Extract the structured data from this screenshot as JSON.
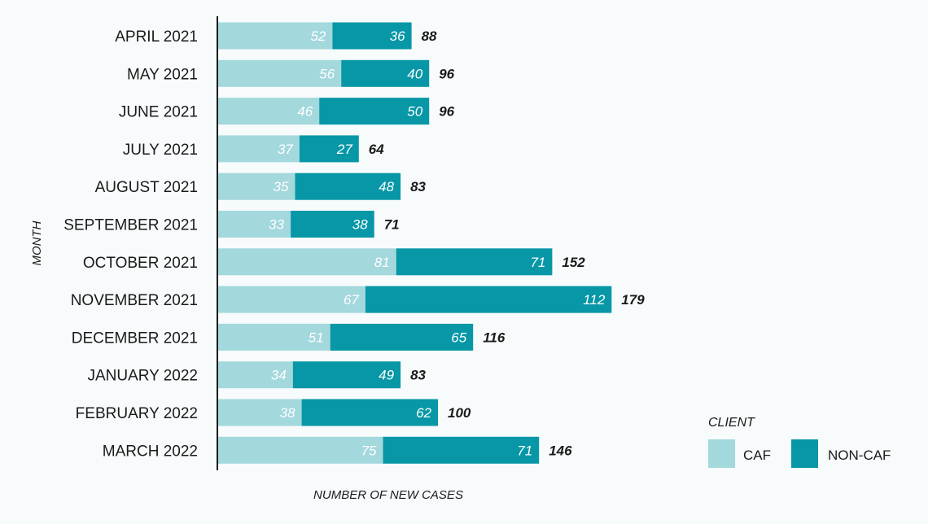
{
  "chart_data": {
    "type": "bar",
    "orientation": "horizontal",
    "stacked": true,
    "title": "",
    "xlabel": "NUMBER OF NEW CASES",
    "ylabel": "MONTH",
    "xlim": [
      0,
      200
    ],
    "grid": false,
    "legend": {
      "title": "CLIENT",
      "placement": "bottom-right"
    },
    "categories": [
      "APRIL 2021",
      "MAY 2021",
      "JUNE 2021",
      "JULY 2021",
      "AUGUST 2021",
      "SEPTEMBER 2021",
      "OCTOBER 2021",
      "NOVEMBER 2021",
      "DECEMBER 2021",
      "JANUARY 2022",
      "FEBRUARY 2022",
      "MARCH 2022"
    ],
    "series": [
      {
        "name": "CAF",
        "color": "#a3d8dd",
        "values": [
          52,
          56,
          46,
          37,
          35,
          33,
          81,
          67,
          51,
          34,
          38,
          75
        ]
      },
      {
        "name": "NON-CAF",
        "color": "#0797a6",
        "values": [
          36,
          40,
          50,
          27,
          48,
          38,
          71,
          112,
          65,
          49,
          62,
          71
        ]
      }
    ],
    "totals": [
      88,
      96,
      96,
      64,
      83,
      71,
      152,
      179,
      116,
      83,
      100,
      146
    ]
  }
}
